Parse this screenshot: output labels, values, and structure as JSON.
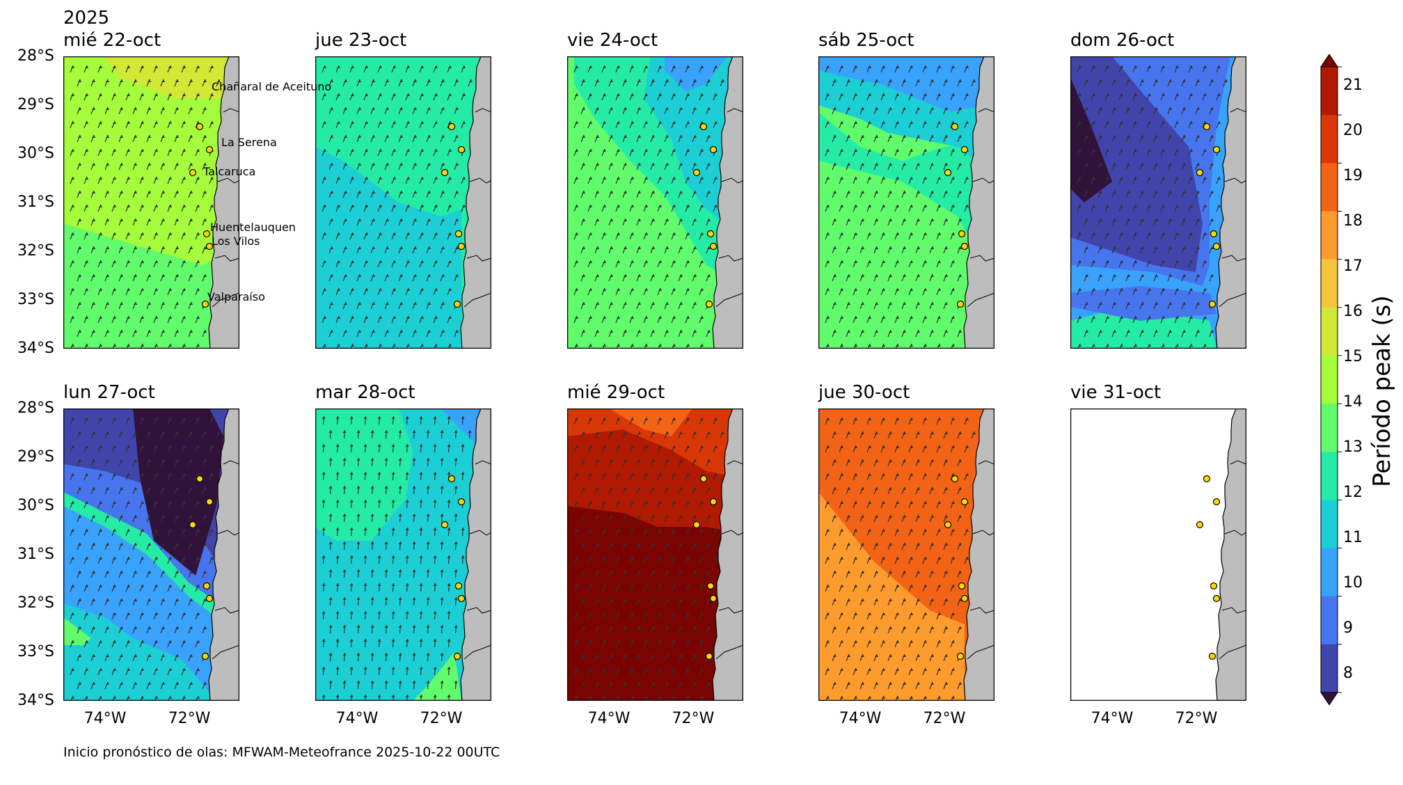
{
  "year_label": "2025",
  "panels": [
    {
      "title": "mié 22-oct",
      "field": "d22",
      "city_labels": true
    },
    {
      "title": "jue 23-oct",
      "field": "d23"
    },
    {
      "title": "vie 24-oct",
      "field": "d24"
    },
    {
      "title": "sáb 25-oct",
      "field": "d25"
    },
    {
      "title": "dom 26-oct",
      "field": "d26"
    },
    {
      "title": "lun 27-oct",
      "field": "d27"
    },
    {
      "title": "mar 28-oct",
      "field": "d28"
    },
    {
      "title": "mié 29-oct",
      "field": "d29"
    },
    {
      "title": "jue 30-oct",
      "field": "d30"
    },
    {
      "title": "vie 31-oct",
      "field": "empty"
    }
  ],
  "lat_ticks": [
    "28°S",
    "29°S",
    "30°S",
    "31°S",
    "32°S",
    "33°S",
    "34°S"
  ],
  "lon_ticks": [
    "74°W",
    "72°W"
  ],
  "cities": [
    "Chañaral de Aceituno",
    "La Serena",
    "Talcaruca",
    "Huentelauquen",
    "Los Vilos",
    "Valparaíso"
  ],
  "colorbar": {
    "label": "Período peak (s)",
    "ticks": [
      "8",
      "9",
      "10",
      "11",
      "12",
      "13",
      "14",
      "15",
      "16",
      "17",
      "18",
      "19",
      "20",
      "21"
    ],
    "colors": [
      "#30123b",
      "#4145ab",
      "#4675ed",
      "#39a2fc",
      "#1bcfd4",
      "#24eca6",
      "#61fc6c",
      "#a4fc3b",
      "#d1e834",
      "#f3c63a",
      "#fe9b2d",
      "#f36315",
      "#d93806",
      "#b11901",
      "#7a0402"
    ],
    "extend": "both"
  },
  "footer": "Inicio pronóstico de olas: MFWAM-Meteofrance 2025-10-22 00UTC"
}
